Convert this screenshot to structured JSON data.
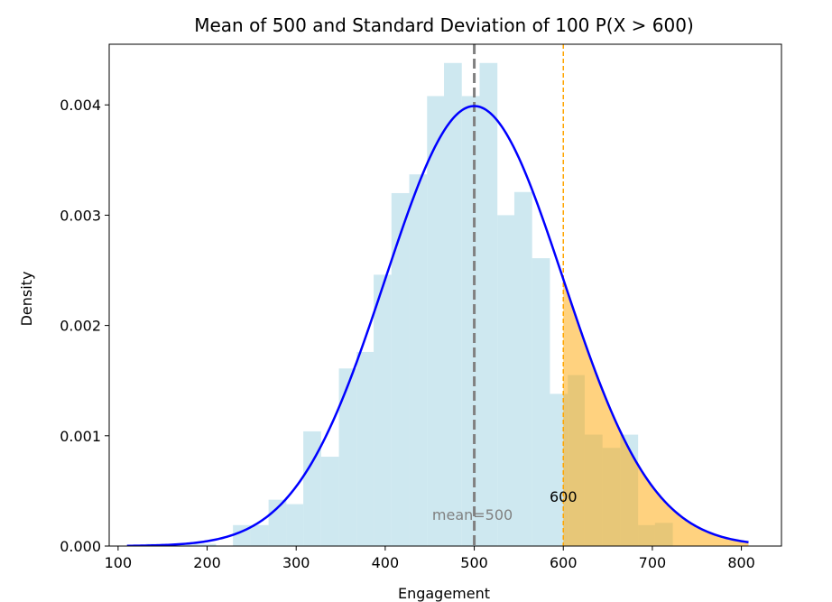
{
  "chart_data": {
    "type": "bar",
    "title": "Mean of 500 and Standard Deviation of 100 P(X > 600)",
    "xlabel": "Engagement",
    "ylabel": "Density",
    "xlim": [
      90,
      845
    ],
    "ylim": [
      0,
      0.00455
    ],
    "xticks": [
      100,
      200,
      300,
      400,
      500,
      600,
      700,
      800
    ],
    "yticks": [
      0.0,
      0.001,
      0.002,
      0.003,
      0.004
    ],
    "ytick_labels": [
      "0.000",
      "0.001",
      "0.002",
      "0.003",
      "0.004"
    ],
    "grid": false,
    "histogram": {
      "color": "#add8e6",
      "bins": [
        {
          "x0": 111,
          "x1": 131,
          "density": 0.0
        },
        {
          "x0": 131,
          "x1": 151,
          "density": 2e-05
        },
        {
          "x0": 151,
          "x1": 170,
          "density": 2e-05
        },
        {
          "x0": 170,
          "x1": 190,
          "density": 2e-05
        },
        {
          "x0": 190,
          "x1": 210,
          "density": 2e-05
        },
        {
          "x0": 210,
          "x1": 229,
          "density": 0.0
        },
        {
          "x0": 229,
          "x1": 249,
          "density": 0.00019
        },
        {
          "x0": 249,
          "x1": 269,
          "density": 0.00019
        },
        {
          "x0": 269,
          "x1": 289,
          "density": 0.00042
        },
        {
          "x0": 289,
          "x1": 308,
          "density": 0.00038
        },
        {
          "x0": 308,
          "x1": 328,
          "density": 0.00104
        },
        {
          "x0": 328,
          "x1": 348,
          "density": 0.00081
        },
        {
          "x0": 348,
          "x1": 368,
          "density": 0.00161
        },
        {
          "x0": 368,
          "x1": 387,
          "density": 0.00176
        },
        {
          "x0": 387,
          "x1": 407,
          "density": 0.00246
        },
        {
          "x0": 407,
          "x1": 427,
          "density": 0.0032
        },
        {
          "x0": 427,
          "x1": 447,
          "density": 0.00337
        },
        {
          "x0": 447,
          "x1": 466,
          "density": 0.00408
        },
        {
          "x0": 466,
          "x1": 486,
          "density": 0.00438
        },
        {
          "x0": 486,
          "x1": 506,
          "density": 0.00408
        },
        {
          "x0": 506,
          "x1": 526,
          "density": 0.00438
        },
        {
          "x0": 526,
          "x1": 545,
          "density": 0.003
        },
        {
          "x0": 545,
          "x1": 565,
          "density": 0.00321
        },
        {
          "x0": 565,
          "x1": 585,
          "density": 0.00261
        },
        {
          "x0": 585,
          "x1": 605,
          "density": 0.00138
        },
        {
          "x0": 605,
          "x1": 624,
          "density": 0.00155
        },
        {
          "x0": 624,
          "x1": 644,
          "density": 0.00101
        },
        {
          "x0": 644,
          "x1": 664,
          "density": 0.00089
        },
        {
          "x0": 664,
          "x1": 684,
          "density": 0.00101
        },
        {
          "x0": 684,
          "x1": 703,
          "density": 0.00019
        },
        {
          "x0": 703,
          "x1": 723,
          "density": 0.00021
        }
      ]
    },
    "normal_curve": {
      "mean": 500,
      "std": 100,
      "x_range": [
        110,
        808
      ],
      "color": "#0000ff"
    },
    "shaded_region": {
      "condition": "X > 600",
      "from": 600,
      "to": 808,
      "color": "#ffa500"
    },
    "mean_line": {
      "x": 500,
      "color": "#808080",
      "style": "dashed",
      "label": "mean=500"
    },
    "threshold_line": {
      "x": 600,
      "color": "#ffa500",
      "style": "dashed",
      "label": "600"
    }
  }
}
